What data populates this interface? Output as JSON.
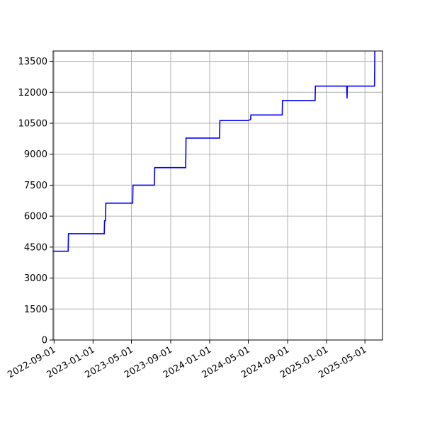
{
  "chart_data": {
    "type": "line",
    "title": "",
    "xlabel": "",
    "ylabel": "",
    "grid": true,
    "line_color": "#0000ff",
    "x_ticks": [
      "2022-09-01",
      "2023-01-01",
      "2023-05-01",
      "2023-09-01",
      "2024-01-01",
      "2024-05-01",
      "2024-09-01",
      "2025-01-01",
      "2025-05-01"
    ],
    "y_ticks": [
      0,
      1500,
      3000,
      4500,
      6000,
      7500,
      9000,
      10500,
      12000,
      13500
    ],
    "y_tick_labels": [
      "0",
      "1500",
      "3000",
      "4500",
      "6000",
      "7500",
      "9000",
      "10500",
      "12000",
      "13500"
    ],
    "xlim": [
      "2022-08-29",
      "2025-06-25"
    ],
    "ylim": [
      0,
      14000
    ],
    "series": [
      {
        "step": true,
        "x": [
          "2022-08-29",
          "2022-10-15",
          "2022-10-16",
          "2023-02-05",
          "2023-02-06",
          "2023-02-09",
          "2023-02-10",
          "2023-05-05",
          "2023-05-06",
          "2023-07-12",
          "2023-07-13",
          "2023-10-18",
          "2023-10-19",
          "2024-02-01",
          "2024-02-02",
          "2024-04-30",
          "2024-05-08",
          "2024-05-09",
          "2024-08-15",
          "2024-08-16",
          "2024-11-26",
          "2024-11-27",
          "2025-03-05",
          "2025-03-06",
          "2025-03-07",
          "2025-05-31",
          "2025-06-01"
        ],
        "y": [
          4300,
          4300,
          5150,
          5150,
          5780,
          5780,
          6630,
          6630,
          7500,
          7500,
          8350,
          8350,
          9780,
          9780,
          10630,
          10630,
          10680,
          10900,
          10900,
          11600,
          11600,
          12300,
          12300,
          11700,
          12300,
          12300,
          14000
        ]
      }
    ]
  }
}
